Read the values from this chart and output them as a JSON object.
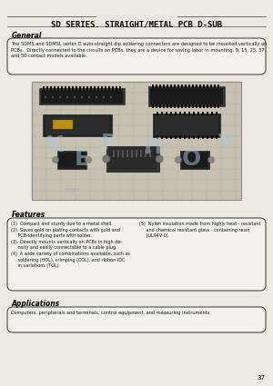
{
  "bg_color": "#ede9e2",
  "title": "SD SERIES. STRAIGHT/METAL PCB D-SUB",
  "title_fontsize": 6.5,
  "section_general": "General",
  "general_text": "The SDMS and SDMSL series D auto-straight dip soldering connectors are designed to be mounted vertically on\nPCBs.  Directly connected to the circuits on PCBs, they are a device for saving labor in mounting. 9, 15, 25, 37,\nand 50-contact models available.",
  "section_features": "Features",
  "features_col1": "(1)  Compact and sturdy due to a metal shell.\n(2)  Saves gold on plating contacts with gold and\n     PCB-identifying parts with solder.\n(3)  Directly mounts vertically on PCBs in high de-\n     nsity and easily connectable to a cable plug.\n(4)  A wide variety of combinations available, such as\n     soldering (HOL), crimping (COL), and ribbon IDC\n     in variations (TOL).",
  "features_col2": "(5)  Nylon insulation made from highly heat - resistant\n     and chemical resistant glass - containing resin\n     (UL94V-0).",
  "section_applications": "Applications",
  "applications_text": "Computers, peripherals and terminals, control equipment, and measuring instruments.",
  "page_number": "37",
  "watermark_letters": [
    "K",
    "E",
    "P",
    "H",
    "O",
    "U"
  ],
  "watermark_color": "#a8c8e0",
  "elekt_text": "ЭЛЕКТ",
  "img_bg": "#c8c0b0",
  "grid_color": "#b0a898",
  "connector_dark": "#1a1a1a",
  "connector_mid": "#2a2a2a",
  "connector_light": "#444444",
  "gold_color": "#b89010"
}
